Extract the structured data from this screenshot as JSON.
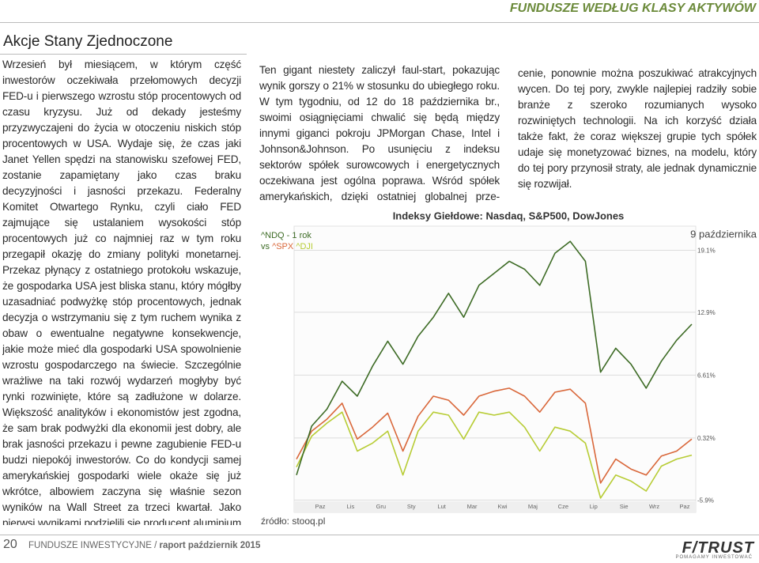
{
  "header": {
    "section": "FUNDUSZE WEDŁUG KLASY AKTYWÓW"
  },
  "article": {
    "title": "Akcje Stany Zjednoczone",
    "columns": [
      "Wrzesień był miesiącem, w którym część inwestorów oczekiwała przełomowych decyzji FED-u i pierwszego wzrostu stóp procentowych od czasu kryzysu. Już od dekady jesteśmy przyzwyczajeni do życia w otoczeniu niskich stóp procentowych w USA. Wydaje się, że czas jaki Janet Yellen spędzi na stanowisku szefowej FED, zostanie zapamiętany jako czas braku decyzyjności i jasności przekazu. Federalny Komitet Otwartego Rynku, czyli ciało FED zajmujące się ustalaniem wysokości stóp procentowych już co najmniej raz w tym roku przegapił okazję do zmiany polityki monetarnej. Przekaz płynący z ostatniego protokołu wskazuje, że gospodarka USA jest bliska stanu, który mógłby uzasadniać podwyżkę stóp procentowych, jednak decyzja o wstrzymaniu się z tym ruchem wynika z obaw o ewentualne negatywne konsekwencje, jakie może mieć dla gospodarki USA spowolnienie wzrostu gospodarczego na świecie. Szczególnie wrażliwe na taki rozwój wydarzeń mogłyby być rynki rozwinięte, które są zadłużone w dolarze. Większość analityków i ekonomistów jest zgodna, że sam brak podwyżki dla ekonomii jest dobry, ale brak jasności przekazu i pewne zagubienie FED-u budzi niepokój inwestorów. Co do kondycji samej amerykańskiej gospodarki wiele okaże się już wkrótce, albowiem zaczyna się właśnie sezon wyników na Wall Street za trzeci kwartał. Jako pierwsi wynikami podzielili się producent aluminium Alcoa.",
      "Ten gigant niestety zaliczył faul-start, pokazując wynik gorszy o 21% w stosunku do ubiegłego roku. W tym tygodniu, od 12 do 18 października br., swoimi osiągnięciami chwalić się będą między innymi giganci pokroju JPMorgan Chase, Intel i Johnson&Johnson. Po usunięciu z indeksu sektorów spółek surowcowych i energetycznych oczekiwana jest ogólna poprawa. Wśród spółek amerykańskich, dzięki ostatniej globalnej prze-",
      "cenie, ponownie można poszukiwać atrakcyjnych wycen. Do tej pory, zwykle najlepiej radziły sobie branże z szeroko rozumianych wysoko rozwiniętych technologii. Na ich korzyść działa także fakt, że coraz większej grupie tych spółek udaje się monetyzować biznes, na modelu, który do tej pory przynosił straty, ale jednak dynamicznie się rozwijał."
    ]
  },
  "chart_data": {
    "type": "line",
    "title": "Indeksy Giełdowe: Nasdaq, S&P500, DowJones",
    "legend_note": "- 1 rok",
    "legend_vs": "vs",
    "date_label": "9 października",
    "source": "źródło: stooq.pl",
    "xticks": [
      "Paz",
      "Lis",
      "Gru",
      "Sty",
      "Lut",
      "Mar",
      "Kwi",
      "Maj",
      "Cze",
      "Lip",
      "Sie",
      "Wrz",
      "Paz"
    ],
    "ylim": [
      -6.5,
      21.2
    ],
    "yticks": [
      {
        "value": 19.1,
        "label": "19.1%"
      },
      {
        "value": 12.9,
        "label": "12.9%"
      },
      {
        "value": 6.61,
        "label": "6.61%"
      },
      {
        "value": 0.32,
        "label": "0.32%"
      },
      {
        "value": -5.9,
        "label": "-5.9%"
      }
    ],
    "grid": true,
    "series": [
      {
        "name": "^NDQ",
        "color": "#3d6b25",
        "values": [
          -3.4,
          1.5,
          3.2,
          6.0,
          4.5,
          7.5,
          10.0,
          7.7,
          10.5,
          12.4,
          14.8,
          12.4,
          15.6,
          16.8,
          18.0,
          17.2,
          15.6,
          18.8,
          20.0,
          18.0,
          6.9,
          9.3,
          7.7,
          5.3,
          8.0,
          10.1,
          11.7
        ]
      },
      {
        "name": "^SPX",
        "color": "#d9673a",
        "values": [
          -1.8,
          1.0,
          2.2,
          3.8,
          0.2,
          1.4,
          2.8,
          -1.0,
          2.5,
          4.5,
          4.1,
          2.6,
          4.5,
          5.0,
          5.3,
          4.5,
          2.9,
          4.9,
          5.2,
          3.8,
          -4.2,
          -1.8,
          -2.8,
          -3.4,
          -1.5,
          -1.0,
          0.2
        ]
      },
      {
        "name": "^DJI",
        "color": "#b7cc34",
        "values": [
          -2.6,
          0.5,
          1.8,
          2.9,
          -1.0,
          -0.2,
          1.0,
          -3.4,
          1.0,
          2.9,
          2.6,
          0.2,
          2.9,
          2.6,
          2.9,
          1.4,
          -1.0,
          1.4,
          1.0,
          -0.2,
          -5.7,
          -3.4,
          -4.0,
          -5.0,
          -2.5,
          -1.8,
          -1.4
        ]
      }
    ]
  },
  "footer": {
    "page": "20",
    "publication": "FUNDUSZE INWESTYCYJNE",
    "separator": "/",
    "issue": "raport październik 2015",
    "logo": "F/TRUST",
    "tagline": "POMAGAMY INWESTOWAĆ"
  }
}
